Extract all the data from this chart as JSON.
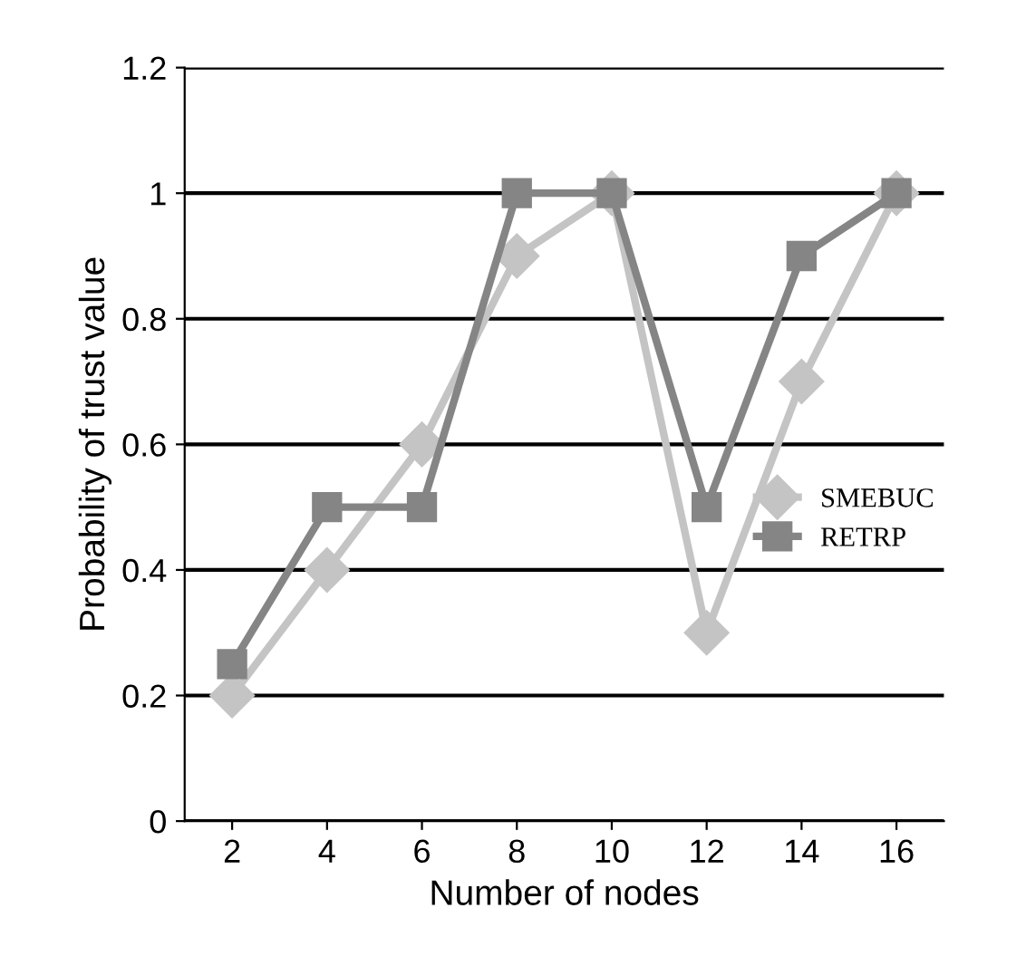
{
  "chart_data": {
    "type": "line",
    "xlabel": "Number of nodes",
    "ylabel": "Probability of trust value",
    "categories": [
      "2",
      "4",
      "6",
      "8",
      "10",
      "12",
      "14",
      "16"
    ],
    "series": [
      {
        "name": "SMEBUC",
        "color": "#c4c4c4",
        "marker": "diamond",
        "values": [
          0.2,
          0.4,
          0.6,
          0.9,
          1.0,
          0.3,
          0.7,
          1.0
        ]
      },
      {
        "name": "RETRP",
        "color": "#858585",
        "marker": "square",
        "values": [
          0.25,
          0.5,
          0.5,
          1.0,
          1.0,
          0.5,
          0.9,
          1.0
        ]
      }
    ],
    "ylim": [
      0,
      1.2
    ],
    "yticks": [
      0,
      0.2,
      0.4,
      0.6,
      0.8,
      1,
      1.2
    ],
    "grid": "y",
    "legend": "right",
    "line_style": "solid"
  }
}
